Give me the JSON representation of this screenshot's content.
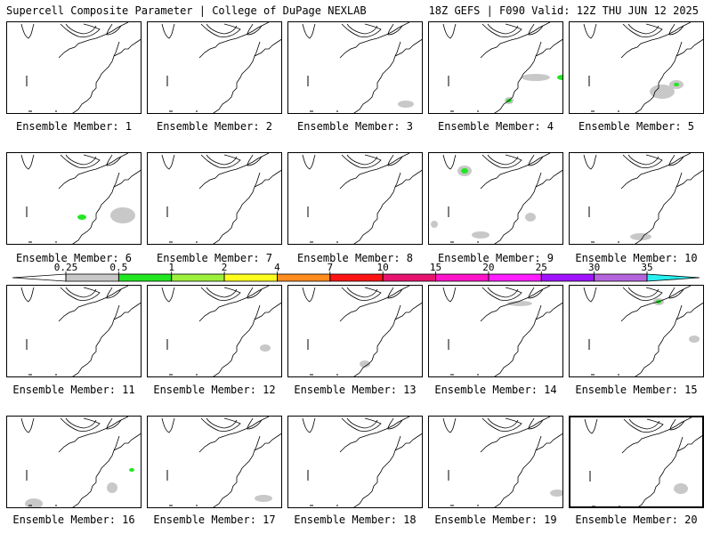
{
  "header": {
    "title_left": "Supercell Composite Parameter | College of DuPage NEXLAB",
    "title_right": "18Z GEFS | F090 Valid: 12Z THU JUN 12 2025"
  },
  "panels": [
    {
      "label": "Ensemble Member: 1"
    },
    {
      "label": "Ensemble Member: 2"
    },
    {
      "label": "Ensemble Member: 3"
    },
    {
      "label": "Ensemble Member: 4"
    },
    {
      "label": "Ensemble Member: 5"
    },
    {
      "label": "Ensemble Member: 6"
    },
    {
      "label": "Ensemble Member: 7"
    },
    {
      "label": "Ensemble Member: 8"
    },
    {
      "label": "Ensemble Member: 9"
    },
    {
      "label": "Ensemble Member: 10"
    },
    {
      "label": "Ensemble Member: 11"
    },
    {
      "label": "Ensemble Member: 12"
    },
    {
      "label": "Ensemble Member: 13"
    },
    {
      "label": "Ensemble Member: 14"
    },
    {
      "label": "Ensemble Member: 15"
    },
    {
      "label": "Ensemble Member: 16"
    },
    {
      "label": "Ensemble Member: 17"
    },
    {
      "label": "Ensemble Member: 18"
    },
    {
      "label": "Ensemble Member: 19"
    },
    {
      "label": "Ensemble Member: 20"
    }
  ],
  "colorbar": {
    "ticks": [
      "0.25",
      "0.5",
      "1",
      "2",
      "4",
      "7",
      "10",
      "15",
      "20",
      "25",
      "30",
      "35"
    ],
    "colors": [
      "#c8c8c8",
      "#22e622",
      "#9cf03c",
      "#ffff1e",
      "#ff8c1e",
      "#ff1414",
      "#e6146e",
      "#ff14c8",
      "#ff1eff",
      "#a014ff",
      "#b464dc",
      "#28f0f0"
    ],
    "end_color": "#ffffff"
  }
}
